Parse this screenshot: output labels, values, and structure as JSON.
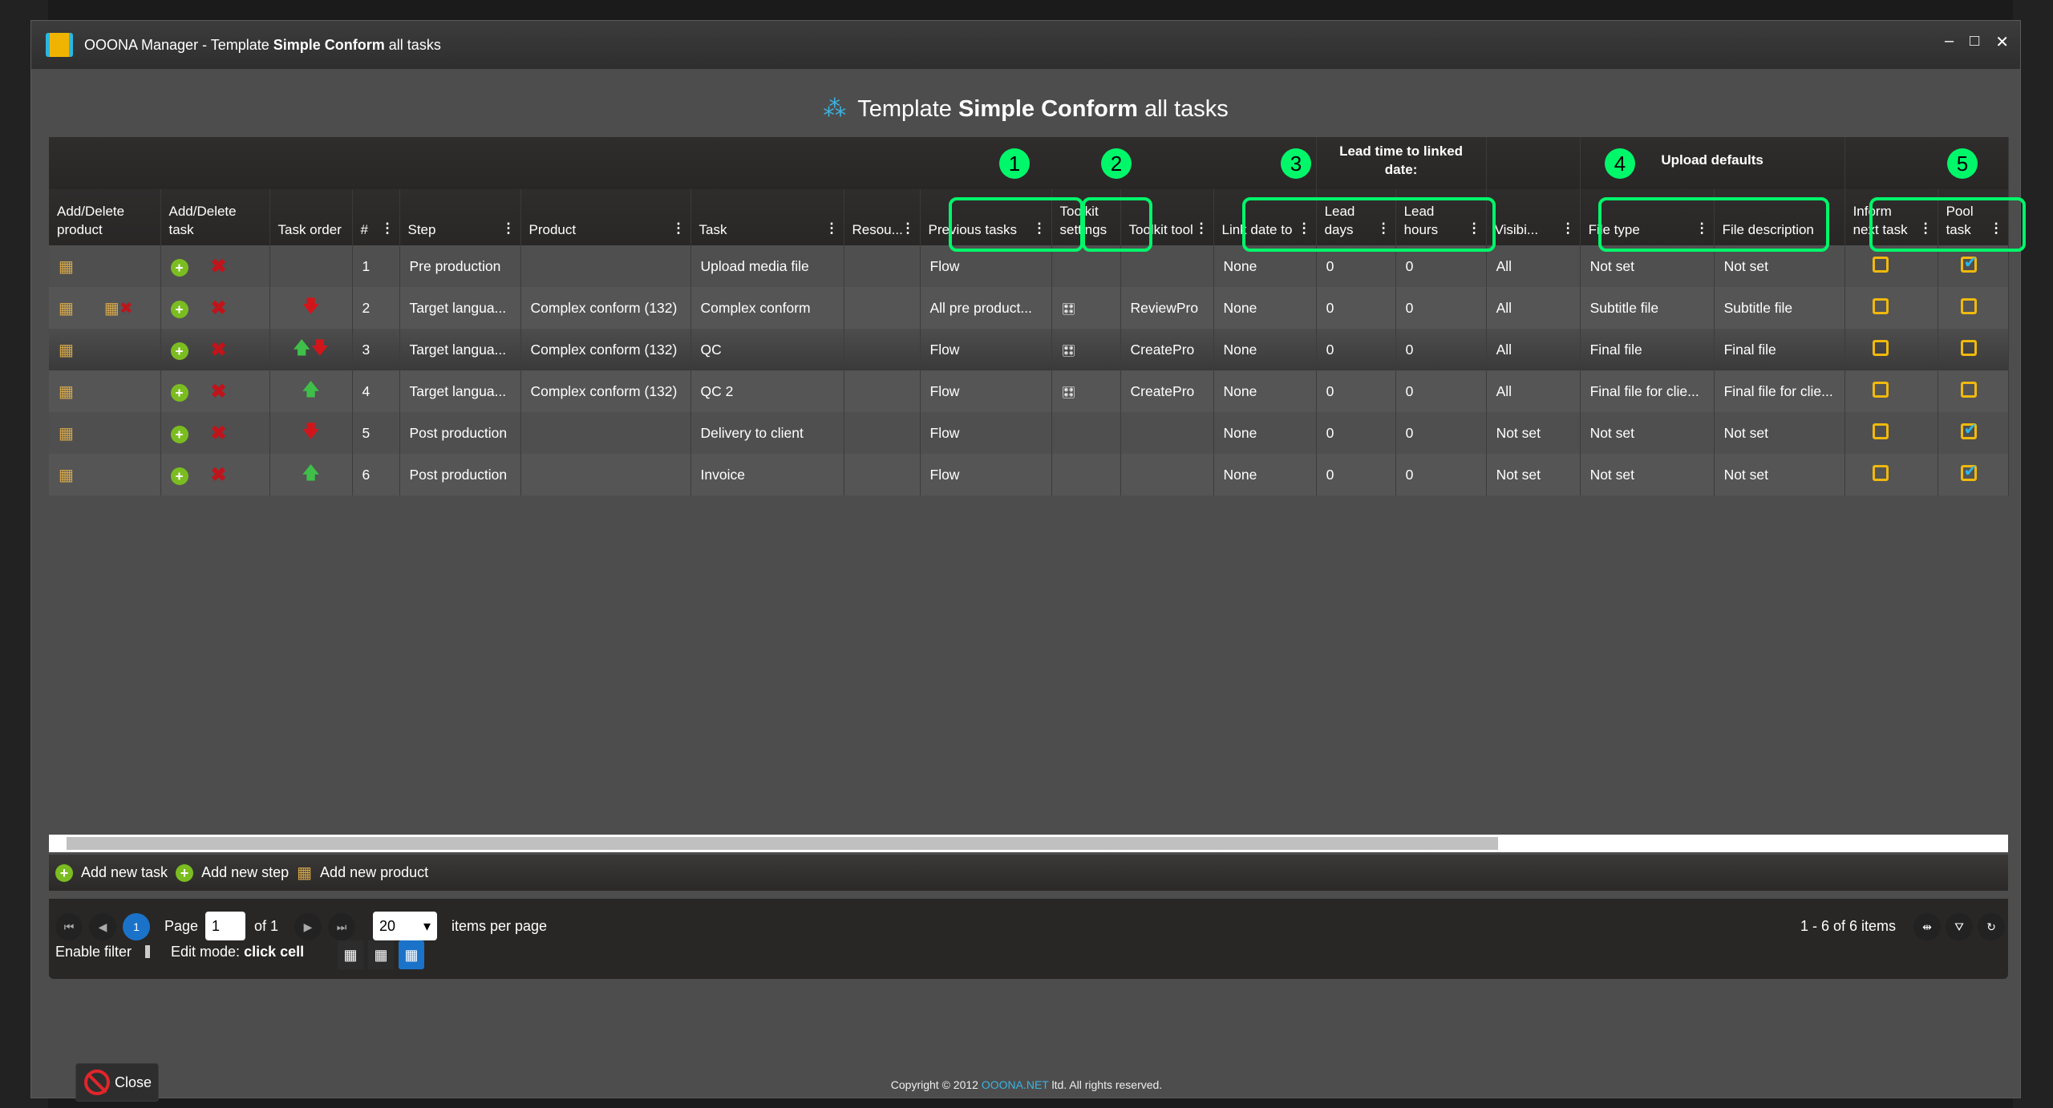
{
  "window": {
    "title_prefix": "OOONA Manager - Template ",
    "title_bold": "Simple Conform",
    "title_suffix": " all tasks"
  },
  "heading": {
    "prefix": "Template ",
    "bold": "Simple Conform",
    "suffix": " all tasks"
  },
  "groups": {
    "lead_time": "Lead time to linked date:",
    "upload_defaults": "Upload defaults"
  },
  "annotations": [
    "1",
    "2",
    "3",
    "4",
    "5"
  ],
  "columns": [
    "Add/Delete product",
    "Add/Delete task",
    "Task order",
    "#",
    "Step",
    "Product",
    "Task",
    "Resou...",
    "Previous tasks",
    "Toolkit settings",
    "Toolkit tool",
    "Link date to",
    "Lead days",
    "Lead hours",
    "Visibi...",
    "File type",
    "File description",
    "Inform next task",
    "Pool task"
  ],
  "rows": [
    {
      "num": "1",
      "step": "Pre production",
      "product": "",
      "task": "Upload media file",
      "prev": "Flow",
      "toolkit_settings": false,
      "tool": "",
      "link": "None",
      "days": "0",
      "hours": "0",
      "vis": "All",
      "ftype": "Not set",
      "fdesc": "Not set",
      "inform": false,
      "pool": true,
      "order": [],
      "del_product": false
    },
    {
      "num": "2",
      "step": "Target langua...",
      "product": "Complex conform (132)",
      "task": "Complex conform",
      "prev": "All pre product...",
      "toolkit_settings": true,
      "tool": "ReviewPro",
      "link": "None",
      "days": "0",
      "hours": "0",
      "vis": "All",
      "ftype": "Subtitle file",
      "fdesc": "Subtitle file",
      "inform": false,
      "pool": false,
      "order": [
        "down"
      ],
      "del_product": true
    },
    {
      "num": "3",
      "step": "Target langua...",
      "product": "Complex conform (132)",
      "task": "QC",
      "prev": "Flow",
      "toolkit_settings": true,
      "tool": "CreatePro",
      "link": "None",
      "days": "0",
      "hours": "0",
      "vis": "All",
      "ftype": "Final file",
      "fdesc": "Final file",
      "inform": false,
      "pool": false,
      "order": [
        "up",
        "down"
      ],
      "del_product": false
    },
    {
      "num": "4",
      "step": "Target langua...",
      "product": "Complex conform (132)",
      "task": "QC 2",
      "prev": "Flow",
      "toolkit_settings": true,
      "tool": "CreatePro",
      "link": "None",
      "days": "0",
      "hours": "0",
      "vis": "All",
      "ftype": "Final file for clie...",
      "fdesc": "Final file for clie...",
      "inform": false,
      "pool": false,
      "order": [
        "up"
      ],
      "del_product": false
    },
    {
      "num": "5",
      "step": "Post production",
      "product": "",
      "task": "Delivery to client",
      "prev": "Flow",
      "toolkit_settings": false,
      "tool": "",
      "link": "None",
      "days": "0",
      "hours": "0",
      "vis": "Not set",
      "ftype": "Not set",
      "fdesc": "Not set",
      "inform": false,
      "pool": true,
      "order": [
        "down"
      ],
      "del_product": false
    },
    {
      "num": "6",
      "step": "Post production",
      "product": "",
      "task": "Invoice",
      "prev": "Flow",
      "toolkit_settings": false,
      "tool": "",
      "link": "None",
      "days": "0",
      "hours": "0",
      "vis": "Not set",
      "ftype": "Not set",
      "fdesc": "Not set",
      "inform": false,
      "pool": true,
      "order": [
        "up"
      ],
      "del_product": false
    }
  ],
  "toolbar": {
    "add_task": "Add new task",
    "add_step": "Add new step",
    "add_product": "Add new product"
  },
  "pager": {
    "current": "1",
    "page_label": "Page",
    "page_value": "1",
    "of": "of 1",
    "per_page": "20",
    "per_page_label": "items per page",
    "summary": "1 - 6 of 6 items",
    "enable_filter": "Enable filter",
    "edit_mode_label": "Edit mode:",
    "edit_mode_value": "click cell"
  },
  "close_label": "Close",
  "copyright": {
    "prefix": "Copyright © 2012 ",
    "brand": "OOONA.NET",
    "suffix": " ltd. All rights reserved."
  },
  "colors": {
    "annotation": "#00f76a",
    "accent": "#1a73c9",
    "checkbox": "#f1b90d"
  }
}
